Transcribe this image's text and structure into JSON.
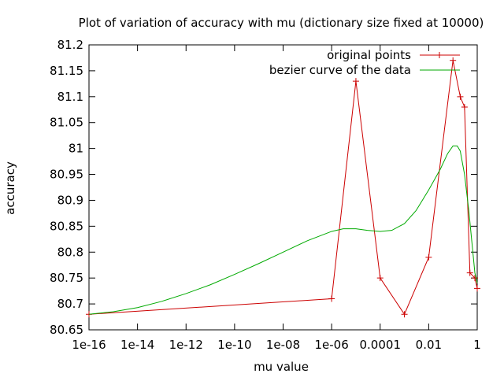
{
  "chart_data": {
    "type": "line",
    "title": "Plot of variation of accuracy with mu (dictionary size fixed at 10000)",
    "xlabel": "mu value",
    "ylabel": "accuracy",
    "xscale": "log",
    "xlim": [
      1e-16,
      1
    ],
    "ylim": [
      80.65,
      81.2
    ],
    "xticks": [
      1e-16,
      1e-14,
      1e-12,
      1e-10,
      1e-08,
      1e-06,
      0.0001,
      0.01,
      1
    ],
    "xtick_labels": [
      "1e-16",
      "1e-14",
      "1e-12",
      "1e-10",
      "1e-08",
      "1e-06",
      "0.0001",
      "0.01",
      "1"
    ],
    "yticks": [
      80.65,
      80.7,
      80.75,
      80.8,
      80.85,
      80.9,
      80.95,
      81,
      81.05,
      81.1,
      81.15,
      81.2
    ],
    "ytick_labels": [
      "80.65",
      "80.7",
      "80.75",
      "80.8",
      "80.85",
      "80.9",
      "80.95",
      "81",
      "81.05",
      "81.1",
      "81.15",
      "81.2"
    ],
    "grid": false,
    "legend_position": "top-right",
    "series": [
      {
        "name": "original points",
        "color": "#cc0000",
        "marker": "plus",
        "x": [
          1e-16,
          1e-06,
          1e-05,
          0.0001,
          0.001,
          0.01,
          0.1,
          0.2,
          0.3,
          0.5,
          0.8,
          1
        ],
        "y": [
          80.68,
          80.71,
          81.13,
          80.75,
          80.68,
          80.79,
          81.17,
          81.1,
          81.08,
          80.76,
          80.75,
          80.73
        ]
      },
      {
        "name": "bezier curve of the data",
        "color": "#00aa00",
        "marker": "none",
        "x": [
          1e-16,
          1e-15,
          1e-14,
          1e-13,
          1e-12,
          1e-11,
          1e-10,
          1e-09,
          1e-08,
          1e-07,
          1e-06,
          3e-06,
          1e-05,
          3e-05,
          0.0001,
          0.0003,
          0.001,
          0.003,
          0.01,
          0.03,
          0.06,
          0.1,
          0.15,
          0.2,
          0.3,
          0.45,
          0.6,
          0.8,
          1
        ],
        "y": [
          80.68,
          80.685,
          80.693,
          80.705,
          80.72,
          80.737,
          80.757,
          80.778,
          80.8,
          80.822,
          80.84,
          80.845,
          80.845,
          80.842,
          80.84,
          80.842,
          80.855,
          80.88,
          80.92,
          80.96,
          80.99,
          81.005,
          81.005,
          80.995,
          80.95,
          80.88,
          80.82,
          80.76,
          80.74
        ]
      }
    ]
  }
}
